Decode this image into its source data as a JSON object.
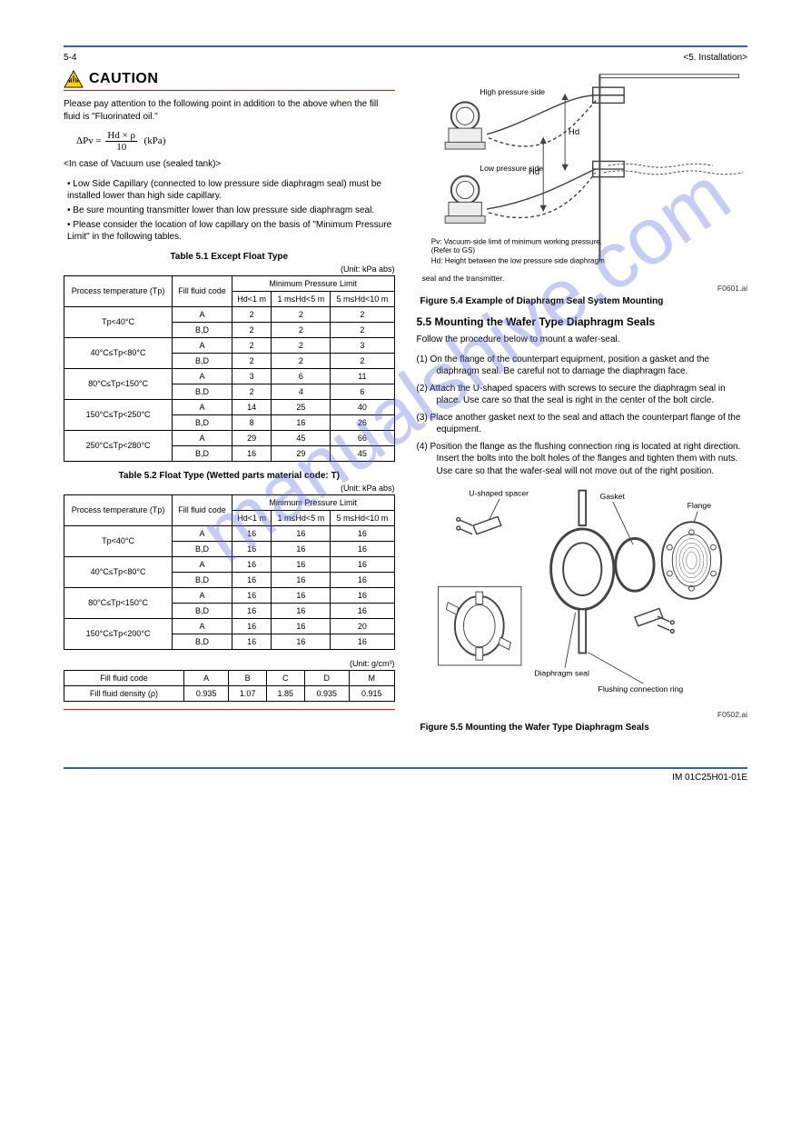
{
  "header": {
    "left": "5-4",
    "right": "<5. Installation>"
  },
  "caution": {
    "word": "CAUTION"
  },
  "left": {
    "note_text": "Please pay attention to the following point in addition to the above when the fill fluid is \"Fluorinated oil.\"",
    "formula_label": "ΔPv =",
    "formula_num": "Hd × ρ",
    "formula_den": "10",
    "formula_unit": "(kPa)",
    "vacuum_head": "<In case of Vacuum use (sealed tank)>",
    "bullets": [
      "Low Side Capillary (connected to low pressure side diaphragm seal) must be installed lower than high side capillary.",
      "Be sure mounting transmitter lower than low pressure side diaphragm seal.",
      "Please consider the location of low capillary on the basis of \"Minimum Pressure Limit\" in the following tables."
    ],
    "tbl1_title": "Table 5.1  Except Float Type",
    "tbl1_unit": "(Unit: kPa abs)",
    "tbl1": {
      "head_row1": [
        "Process temperature (Tp)",
        "Fill fluid code",
        "Minimum Pressure Limit"
      ],
      "head_row2": [
        "",
        "",
        "Hd<1 m",
        "1 m≤Hd<5 m",
        "5 m≤Hd<10 m"
      ],
      "rows": [
        [
          "Tp<40°C",
          "A",
          "2",
          "2",
          "2"
        ],
        [
          "",
          "B,D",
          "2",
          "2",
          "2"
        ],
        [
          "40°C≤Tp<80°C",
          "A",
          "2",
          "2",
          "3"
        ],
        [
          "",
          "B,D",
          "2",
          "2",
          "2"
        ],
        [
          "80°C≤Tp<150°C",
          "A",
          "3",
          "6",
          "11"
        ],
        [
          "",
          "B,D",
          "2",
          "4",
          "6"
        ],
        [
          "150°C≤Tp<250°C",
          "A",
          "14",
          "25",
          "40"
        ],
        [
          "",
          "B,D",
          "8",
          "16",
          "26"
        ],
        [
          "250°C≤Tp<280°C",
          "A",
          "29",
          "45",
          "66"
        ],
        [
          "",
          "B,D",
          "16",
          "29",
          "45"
        ]
      ]
    },
    "tbl2_title": "Table 5.2  Float Type (Wetted parts material code: T)",
    "tbl2_unit": "(Unit: kPa abs)",
    "tbl2": {
      "head_row1": [
        "Process temperature (Tp)",
        "Fill fluid code",
        "Minimum Pressure Limit"
      ],
      "head_row2": [
        "",
        "",
        "Hd<1 m",
        "1 m≤Hd<5 m",
        "5 m≤Hd<10 m"
      ],
      "rows": [
        [
          "Tp<40°C",
          "A",
          "16",
          "16",
          "16"
        ],
        [
          "",
          "B,D",
          "16",
          "16",
          "16"
        ],
        [
          "40°C≤Tp<80°C",
          "A",
          "16",
          "16",
          "16"
        ],
        [
          "",
          "B,D",
          "16",
          "16",
          "16"
        ],
        [
          "80°C≤Tp<150°C",
          "A",
          "16",
          "16",
          "16"
        ],
        [
          "",
          "B,D",
          "16",
          "16",
          "16"
        ],
        [
          "150°C≤Tp<200°C",
          "A",
          "16",
          "16",
          "20"
        ],
        [
          "",
          "B,D",
          "16",
          "16",
          "16"
        ]
      ]
    },
    "tbl3_unit": "(Unit: g/cm³)",
    "tbl3": {
      "cols": [
        "Fill fluid code",
        "A",
        "B",
        "C",
        "D",
        "M"
      ],
      "row_label": "Fill fluid density (ρ)",
      "vals": [
        "0.935",
        "1.07",
        "1.85",
        "0.935",
        "0.915"
      ]
    }
  },
  "right": {
    "diagram": {
      "hd_label": "Hd",
      "hp_label": "High pressure side",
      "lp_label": "Low pressure side",
      "pv_note1": "Pv: Vacuum-side limit of minimum working pressure.",
      "pv_note2": "  (Refer to GS)",
      "pv_note3": "Hd: Height between the low pressure side diaphragm seal and the transmitter."
    },
    "fig1_ref": "F0601.ai",
    "fig1_caption": "Figure 5.4  Example of Diaphragm Seal System Mounting",
    "section": "5.5  Mounting the Wafer Type Diaphragm Seals",
    "section_text": "Follow the procedure below to mount a wafer-seal.",
    "steps": [
      "On the flange of the counterpart equipment, position a gasket and the diaphragm seal. Be careful not to damage the diaphragm face.",
      "Attach the U-shaped spacers with screws to secure the diaphragm seal in place. Use care so that the seal is right in the center of the bolt circle.",
      "Place another gasket next to the seal and attach the counterpart flange of the equipment.",
      "Position the flange as the flushing connection ring is located at right direction. Insert the bolts into the bolt holes of the flanges and tighten them with nuts. Use care so that the wafer-seal will not move out of the right position."
    ],
    "fig2_labels": {
      "spacer": "U-shaped spacer",
      "gasket": "Gasket",
      "flange": "Flange",
      "seal": "Diaphragm seal",
      "flush": "Flushing connection ring"
    },
    "fig2_ref": "F0502.ai",
    "fig2_caption": "Figure 5.5  Mounting the Wafer Type Diaphragm Seals"
  },
  "footer": {
    "left": "IM 01C25H01-01E",
    "right": ""
  }
}
